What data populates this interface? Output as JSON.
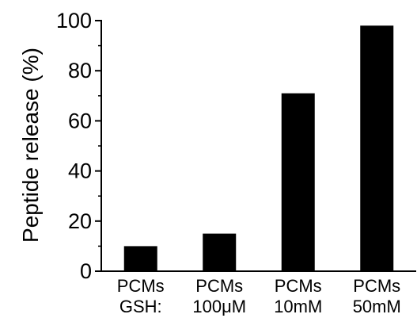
{
  "chart_data": {
    "type": "bar",
    "title": "",
    "xlabel": "",
    "ylabel": "Peptide release (%)",
    "ylim": [
      0,
      100
    ],
    "yticks": [
      0,
      20,
      40,
      60,
      80,
      100
    ],
    "grid": false,
    "categories": [
      "PCMs",
      "PCMs",
      "PCMs",
      "PCMs"
    ],
    "sublabels": [
      "GSH:",
      "100μM",
      "10mM",
      "50mM"
    ],
    "values": [
      10,
      15,
      71,
      98
    ],
    "bar_color": "#000000"
  }
}
